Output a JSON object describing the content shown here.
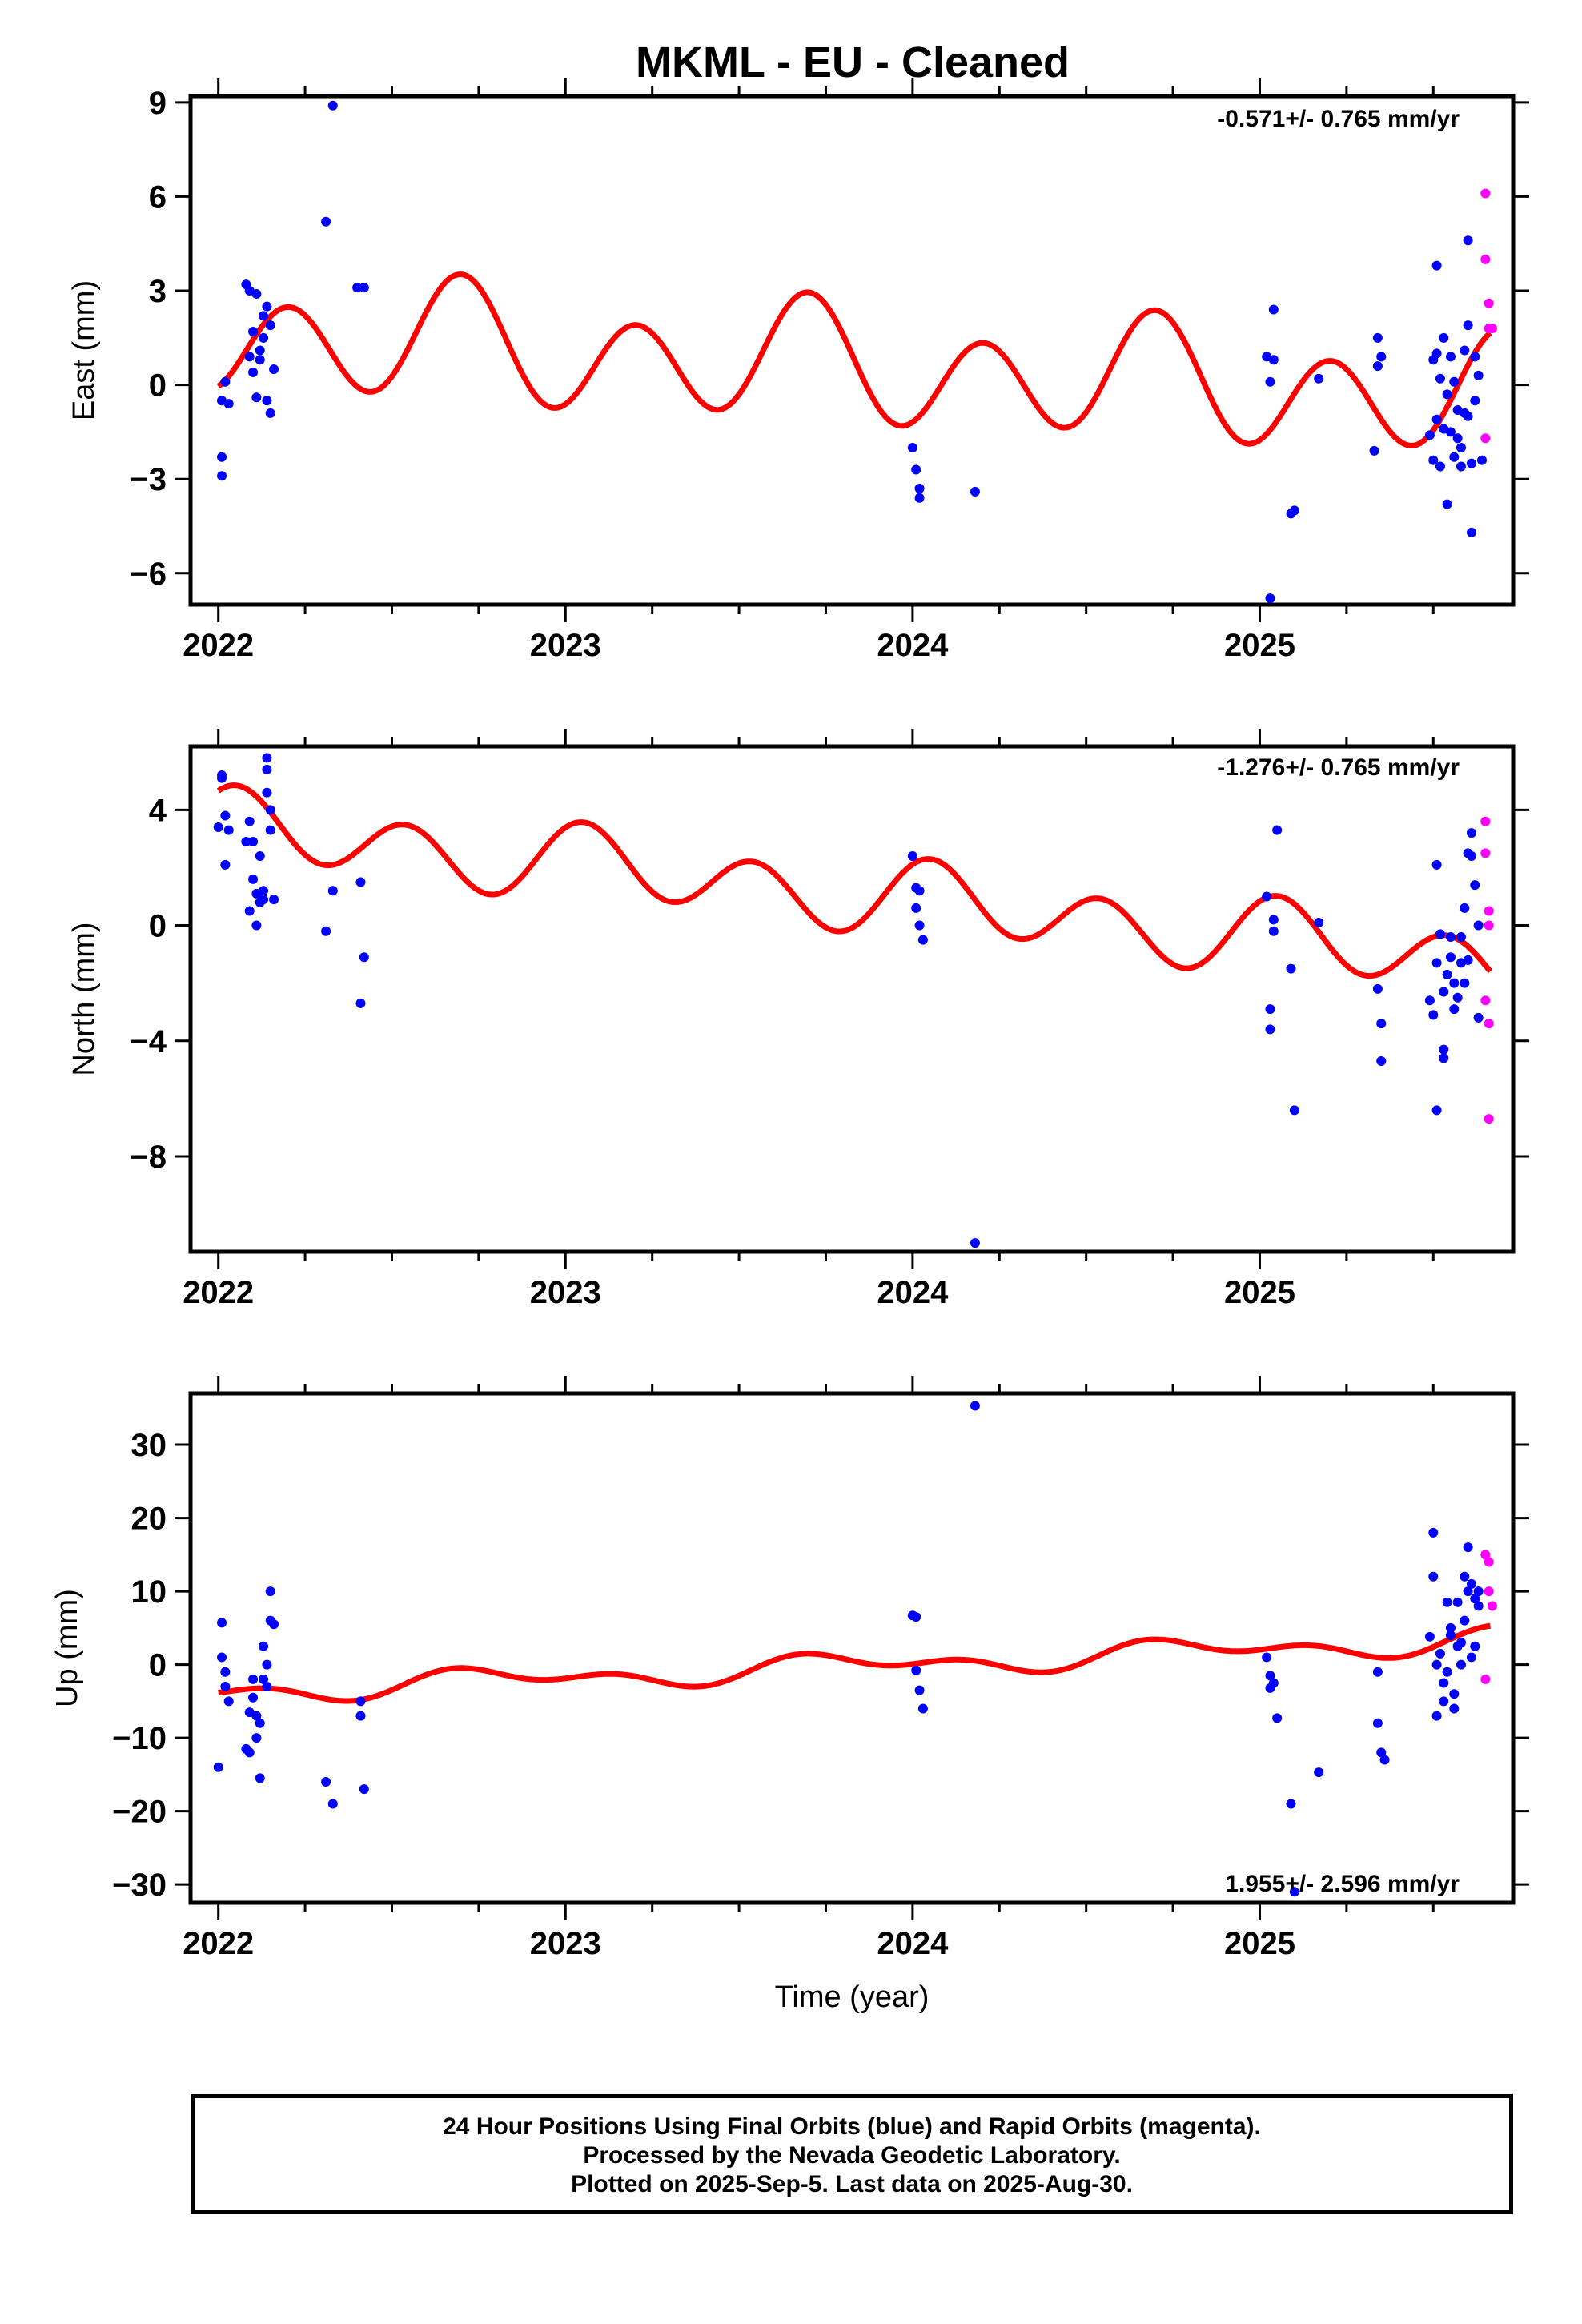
{
  "title": "MKML  - EU - Cleaned",
  "caption": {
    "line1": "24 Hour Positions Using Final Orbits (blue) and Rapid Orbits (magenta).",
    "line2": "Processed by the Nevada Geodetic Laboratory.",
    "line3": "Plotted on 2025-Sep-5. Last data on 2025-Aug-30."
  },
  "colors": {
    "final": "#0000ff",
    "rapid": "#ff00ff",
    "fit": "#ff0000"
  },
  "chart_data": [
    {
      "type": "scatter",
      "ylabel": "East (mm)",
      "xlabel": "",
      "rate": "-0.571+/- 0.765 mm/yr",
      "xlim": [
        2021.92,
        2025.73
      ],
      "ylim": [
        -7.0,
        9.2
      ],
      "yticks": [
        -6,
        -3,
        0,
        3,
        6,
        9
      ],
      "xticks": [
        2022,
        2023,
        2024,
        2025
      ],
      "fit": {
        "offset": 0.75,
        "rate": -0.571,
        "a1": -0.6,
        "b1": -0.3,
        "a2": 0.95,
        "b2": -1.35
      },
      "final": [
        [
          2022.01,
          -0.5
        ],
        [
          2022.01,
          -2.3
        ],
        [
          2022.01,
          -2.9
        ],
        [
          2022.02,
          0.1
        ],
        [
          2022.03,
          -0.6
        ],
        [
          2022.08,
          3.2
        ],
        [
          2022.09,
          0.9
        ],
        [
          2022.09,
          3.0
        ],
        [
          2022.1,
          0.4
        ],
        [
          2022.1,
          1.7
        ],
        [
          2022.11,
          2.9
        ],
        [
          2022.11,
          -0.4
        ],
        [
          2022.12,
          1.1
        ],
        [
          2022.12,
          0.8
        ],
        [
          2022.13,
          1.5
        ],
        [
          2022.13,
          2.2
        ],
        [
          2022.14,
          2.5
        ],
        [
          2022.14,
          -0.5
        ],
        [
          2022.15,
          1.9
        ],
        [
          2022.15,
          -0.9
        ],
        [
          2022.16,
          0.5
        ],
        [
          2022.31,
          5.2
        ],
        [
          2022.33,
          8.9
        ],
        [
          2022.4,
          3.1
        ],
        [
          2022.42,
          3.1
        ],
        [
          2024.0,
          -2.0
        ],
        [
          2024.01,
          -2.7
        ],
        [
          2024.02,
          -3.3
        ],
        [
          2024.02,
          -3.6
        ],
        [
          2024.18,
          -3.4
        ],
        [
          2025.02,
          0.9
        ],
        [
          2025.03,
          -6.8
        ],
        [
          2025.03,
          0.1
        ],
        [
          2025.04,
          0.8
        ],
        [
          2025.04,
          2.4
        ],
        [
          2025.09,
          -4.1
        ],
        [
          2025.1,
          -4.0
        ],
        [
          2025.17,
          0.2
        ],
        [
          2025.33,
          -2.1
        ],
        [
          2025.34,
          1.5
        ],
        [
          2025.34,
          0.6
        ],
        [
          2025.35,
          0.9
        ],
        [
          2025.49,
          -1.6
        ],
        [
          2025.5,
          0.8
        ],
        [
          2025.5,
          -2.4
        ],
        [
          2025.51,
          1.0
        ],
        [
          2025.51,
          3.8
        ],
        [
          2025.51,
          -1.1
        ],
        [
          2025.52,
          0.2
        ],
        [
          2025.52,
          -2.6
        ],
        [
          2025.53,
          1.5
        ],
        [
          2025.53,
          -1.4
        ],
        [
          2025.54,
          -3.8
        ],
        [
          2025.54,
          -0.3
        ],
        [
          2025.55,
          0.9
        ],
        [
          2025.55,
          -1.5
        ],
        [
          2025.56,
          -2.3
        ],
        [
          2025.56,
          0.1
        ],
        [
          2025.57,
          -1.7
        ],
        [
          2025.57,
          -0.8
        ],
        [
          2025.58,
          -2.0
        ],
        [
          2025.58,
          -2.6
        ],
        [
          2025.59,
          -0.9
        ],
        [
          2025.59,
          1.1
        ],
        [
          2025.6,
          1.9
        ],
        [
          2025.6,
          4.6
        ],
        [
          2025.61,
          -4.7
        ],
        [
          2025.61,
          -2.5
        ],
        [
          2025.62,
          0.9
        ],
        [
          2025.62,
          -0.5
        ],
        [
          2025.63,
          0.3
        ],
        [
          2025.64,
          -2.4
        ],
        [
          2025.6,
          -1.0
        ]
      ],
      "rapid": [
        [
          2025.65,
          6.1
        ],
        [
          2025.65,
          4.0
        ],
        [
          2025.66,
          2.6
        ],
        [
          2025.66,
          1.8
        ],
        [
          2025.67,
          1.8
        ],
        [
          2025.65,
          -1.7
        ]
      ]
    },
    {
      "type": "scatter",
      "ylabel": "North (mm)",
      "xlabel": "",
      "rate": "-1.276+/- 0.765 mm/yr",
      "xlim": [
        2021.92,
        2025.73
      ],
      "ylim": [
        -11.3,
        6.2
      ],
      "yticks": [
        -8,
        -4,
        0,
        4
      ],
      "xticks": [
        2022,
        2023,
        2024,
        2025
      ],
      "fit": {
        "offset": 1.5,
        "rate": -1.276,
        "a1": 0.3,
        "b1": 0.3,
        "a2": 0.6,
        "b2": 0.95
      },
      "final": [
        [
          2022.0,
          3.4
        ],
        [
          2022.01,
          5.1
        ],
        [
          2022.01,
          5.2
        ],
        [
          2022.02,
          3.8
        ],
        [
          2022.02,
          2.1
        ],
        [
          2022.03,
          3.3
        ],
        [
          2022.08,
          2.9
        ],
        [
          2022.09,
          0.5
        ],
        [
          2022.09,
          3.6
        ],
        [
          2022.1,
          1.6
        ],
        [
          2022.1,
          2.9
        ],
        [
          2022.11,
          0.0
        ],
        [
          2022.11,
          1.1
        ],
        [
          2022.12,
          2.4
        ],
        [
          2022.12,
          0.8
        ],
        [
          2022.13,
          1.2
        ],
        [
          2022.13,
          0.9
        ],
        [
          2022.14,
          4.6
        ],
        [
          2022.14,
          5.8
        ],
        [
          2022.14,
          5.4
        ],
        [
          2022.15,
          3.3
        ],
        [
          2022.15,
          4.0
        ],
        [
          2022.16,
          0.9
        ],
        [
          2022.31,
          -0.2
        ],
        [
          2022.33,
          1.2
        ],
        [
          2022.41,
          1.5
        ],
        [
          2022.41,
          -2.7
        ],
        [
          2022.42,
          -1.1
        ],
        [
          2024.0,
          2.4
        ],
        [
          2024.01,
          1.3
        ],
        [
          2024.01,
          0.6
        ],
        [
          2024.02,
          1.2
        ],
        [
          2024.02,
          0.0
        ],
        [
          2024.03,
          -0.5
        ],
        [
          2024.18,
          -11.0
        ],
        [
          2025.02,
          1.0
        ],
        [
          2025.03,
          -3.6
        ],
        [
          2025.03,
          -2.9
        ],
        [
          2025.04,
          0.2
        ],
        [
          2025.04,
          -0.2
        ],
        [
          2025.05,
          3.3
        ],
        [
          2025.09,
          -1.5
        ],
        [
          2025.1,
          -6.4
        ],
        [
          2025.17,
          0.1
        ],
        [
          2025.34,
          -2.2
        ],
        [
          2025.35,
          -3.4
        ],
        [
          2025.35,
          -4.7
        ],
        [
          2025.49,
          -2.6
        ],
        [
          2025.5,
          -3.1
        ],
        [
          2025.51,
          -1.3
        ],
        [
          2025.51,
          2.1
        ],
        [
          2025.51,
          -6.4
        ],
        [
          2025.52,
          -0.3
        ],
        [
          2025.53,
          -4.3
        ],
        [
          2025.53,
          -4.6
        ],
        [
          2025.53,
          -2.3
        ],
        [
          2025.54,
          -1.7
        ],
        [
          2025.55,
          -1.1
        ],
        [
          2025.55,
          -0.4
        ],
        [
          2025.56,
          -2.9
        ],
        [
          2025.56,
          -2.0
        ],
        [
          2025.57,
          -2.5
        ],
        [
          2025.58,
          -0.4
        ],
        [
          2025.58,
          -1.3
        ],
        [
          2025.59,
          0.6
        ],
        [
          2025.59,
          -2.0
        ],
        [
          2025.6,
          -1.2
        ],
        [
          2025.6,
          2.5
        ],
        [
          2025.61,
          2.4
        ],
        [
          2025.61,
          3.2
        ],
        [
          2025.62,
          1.4
        ],
        [
          2025.63,
          -3.2
        ],
        [
          2025.63,
          0.0
        ]
      ],
      "rapid": [
        [
          2025.65,
          3.6
        ],
        [
          2025.65,
          2.5
        ],
        [
          2025.66,
          0.5
        ],
        [
          2025.66,
          0.0
        ],
        [
          2025.65,
          -2.6
        ],
        [
          2025.66,
          -3.4
        ],
        [
          2025.66,
          -6.7
        ]
      ]
    },
    {
      "type": "scatter",
      "ylabel": "Up (mm)",
      "xlabel": "Time (year)",
      "rate": "1.955+/- 2.596 mm/yr",
      "xlim": [
        2021.92,
        2025.73
      ],
      "ylim": [
        -32.5,
        37.0
      ],
      "yticks": [
        -30,
        -20,
        -10,
        0,
        10,
        20,
        30
      ],
      "xticks": [
        2022,
        2023,
        2024,
        2025
      ],
      "fit": {
        "offset": -0.8,
        "rate": 1.955,
        "a1": -1.2,
        "b1": 0.3,
        "a2": 0.9,
        "b2": -0.4
      },
      "final": [
        [
          2022.0,
          -14.0
        ],
        [
          2022.01,
          5.7
        ],
        [
          2022.01,
          1.0
        ],
        [
          2022.02,
          -3.0
        ],
        [
          2022.02,
          -1.0
        ],
        [
          2022.03,
          -5.0
        ],
        [
          2022.08,
          -11.5
        ],
        [
          2022.09,
          -12.0
        ],
        [
          2022.09,
          -6.5
        ],
        [
          2022.1,
          -2.0
        ],
        [
          2022.1,
          -4.5
        ],
        [
          2022.11,
          -10.0
        ],
        [
          2022.11,
          -7.0
        ],
        [
          2022.12,
          -15.5
        ],
        [
          2022.12,
          -8.0
        ],
        [
          2022.13,
          2.5
        ],
        [
          2022.13,
          -2.0
        ],
        [
          2022.14,
          -3.0
        ],
        [
          2022.14,
          0.0
        ],
        [
          2022.15,
          10.0
        ],
        [
          2022.15,
          6.0
        ],
        [
          2022.16,
          5.5
        ],
        [
          2022.31,
          -16.0
        ],
        [
          2022.33,
          -19.0
        ],
        [
          2022.41,
          -7.0
        ],
        [
          2022.41,
          -5.0
        ],
        [
          2022.42,
          -17.0
        ],
        [
          2024.0,
          6.7
        ],
        [
          2024.01,
          6.5
        ],
        [
          2024.01,
          -0.8
        ],
        [
          2024.02,
          -3.5
        ],
        [
          2024.03,
          -6.0
        ],
        [
          2024.18,
          35.3
        ],
        [
          2025.02,
          1.0
        ],
        [
          2025.03,
          -1.5
        ],
        [
          2025.03,
          -3.2
        ],
        [
          2025.04,
          -2.5
        ],
        [
          2025.05,
          -7.3
        ],
        [
          2025.09,
          -19.0
        ],
        [
          2025.1,
          -31.0
        ],
        [
          2025.17,
          -14.7
        ],
        [
          2025.34,
          -1.0
        ],
        [
          2025.34,
          -8.0
        ],
        [
          2025.35,
          -12.0
        ],
        [
          2025.36,
          -13.0
        ],
        [
          2025.49,
          3.8
        ],
        [
          2025.5,
          12.0
        ],
        [
          2025.5,
          18.0
        ],
        [
          2025.51,
          -7.0
        ],
        [
          2025.51,
          0.0
        ],
        [
          2025.52,
          1.5
        ],
        [
          2025.53,
          -2.5
        ],
        [
          2025.53,
          -5.0
        ],
        [
          2025.54,
          8.5
        ],
        [
          2025.54,
          -1.0
        ],
        [
          2025.55,
          4.0
        ],
        [
          2025.55,
          5.0
        ],
        [
          2025.56,
          -4.0
        ],
        [
          2025.56,
          -6.0
        ],
        [
          2025.57,
          2.5
        ],
        [
          2025.57,
          8.5
        ],
        [
          2025.58,
          0.0
        ],
        [
          2025.58,
          3.0
        ],
        [
          2025.59,
          12.0
        ],
        [
          2025.59,
          6.0
        ],
        [
          2025.6,
          16.0
        ],
        [
          2025.6,
          10.0
        ],
        [
          2025.61,
          11.0
        ],
        [
          2025.61,
          1.0
        ],
        [
          2025.62,
          9.0
        ],
        [
          2025.62,
          2.5
        ],
        [
          2025.63,
          10.0
        ],
        [
          2025.63,
          8.0
        ]
      ],
      "rapid": [
        [
          2025.65,
          15.0
        ],
        [
          2025.66,
          14.0
        ],
        [
          2025.66,
          10.0
        ],
        [
          2025.67,
          8.0
        ],
        [
          2025.65,
          -2.0
        ]
      ]
    }
  ]
}
